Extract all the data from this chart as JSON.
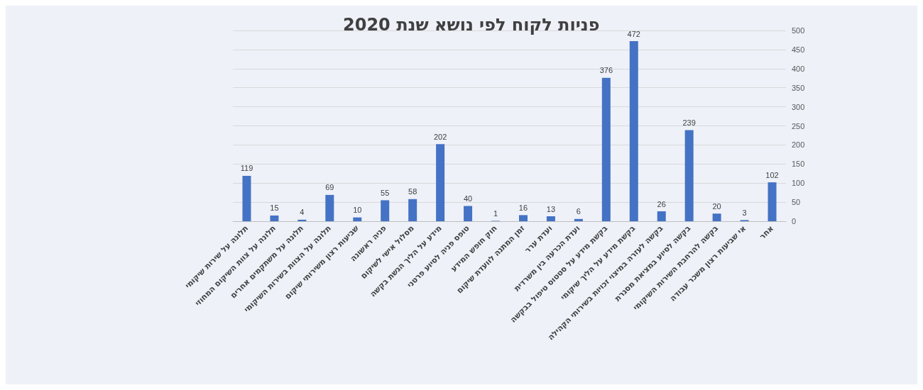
{
  "chart_data": {
    "type": "bar",
    "title": "פניות לקוח לפי נושא שנת 2020",
    "categories": [
      "תלונה על שירות שיקומי",
      "תלונה על צוות השיקום המחוזי",
      "תלונה על משתקמים אחרים",
      "תלונה על הצוות בשירות השיקומי",
      "שביעות רצון משירותי שיקום",
      "פניה ראשונה",
      "מסלול אישי לשיקום",
      "מידע על הליך הגשת בקשה",
      "טופס פניה לסיוע פרטני",
      "חוק חופש המידע",
      "זמן המתנה לוועדת שיקום",
      "ועדת ערר",
      "ועדת הכרעה בין משרדית",
      "בקשת מידע על סטטוס טיפול בבקשה",
      "בקשת מידע על הליך שיקומי",
      "בקשה לעזרה במיצוי זכויות בשירותי הקהילה",
      "בקשה לסיוע במציאת מסגרת",
      "בקשה להרחבת השירות השיקומי",
      "אי שביעות רצון משכר עבודה",
      "אחר"
    ],
    "values": [
      119,
      15,
      4,
      69,
      10,
      55,
      58,
      202,
      40,
      1,
      16,
      13,
      6,
      376,
      472,
      26,
      239,
      20,
      3,
      102
    ],
    "color": "#4472c4",
    "ylim": [
      0,
      500
    ],
    "yticks": [
      0,
      50,
      100,
      150,
      200,
      250,
      300,
      350,
      400,
      450,
      500
    ],
    "grid": "y",
    "data_labels": true
  }
}
